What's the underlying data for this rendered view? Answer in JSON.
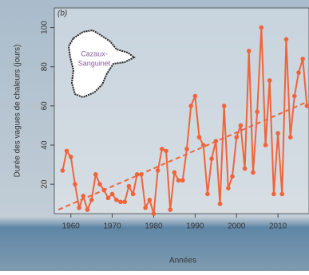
{
  "chart_data": {
    "type": "line",
    "panel_label": "(b)",
    "y_label": "Durée des vagues de chaleurs (jours)",
    "x_label": "Années",
    "map_label": [
      "Cazaux-",
      "Sanguinet"
    ],
    "x": [
      1958,
      1959,
      1960,
      1961,
      1962,
      1963,
      1964,
      1965,
      1966,
      1967,
      1968,
      1969,
      1970,
      1971,
      1972,
      1973,
      1974,
      1975,
      1976,
      1977,
      1978,
      1979,
      1980,
      1981,
      1982,
      1983,
      1984,
      1985,
      1986,
      1987,
      1988,
      1989,
      1990,
      1991,
      1992,
      1993,
      1994,
      1995,
      1996,
      1997,
      1998,
      1999,
      2000,
      2001,
      2002,
      2003,
      2004,
      2005,
      2006,
      2007,
      2008,
      2009,
      2010,
      2011,
      2012,
      2013,
      2014,
      2015,
      2016,
      2017
    ],
    "values": [
      27,
      37,
      34,
      20,
      8,
      14,
      7,
      12,
      25,
      20,
      17,
      13,
      15,
      12,
      11,
      11,
      19,
      15,
      25,
      25,
      8,
      12,
      5,
      27,
      38,
      37,
      7,
      26,
      22,
      22,
      38,
      60,
      65,
      44,
      40,
      15,
      33,
      42,
      10,
      60,
      18,
      24,
      44,
      50,
      28,
      88,
      26,
      57,
      100,
      40,
      73,
      15,
      46,
      15,
      94,
      44,
      65,
      77,
      84,
      60
    ],
    "color": "#f0643a",
    "trend": {
      "x": [
        1957,
        2017
      ],
      "values": [
        7,
        62
      ]
    },
    "xlim": [
      1956,
      2017.5
    ],
    "ylim": [
      5,
      110
    ],
    "xticks": [
      1960,
      1970,
      1980,
      1990,
      2000,
      2010
    ],
    "yticks": [
      20,
      40,
      60,
      80,
      100
    ]
  }
}
